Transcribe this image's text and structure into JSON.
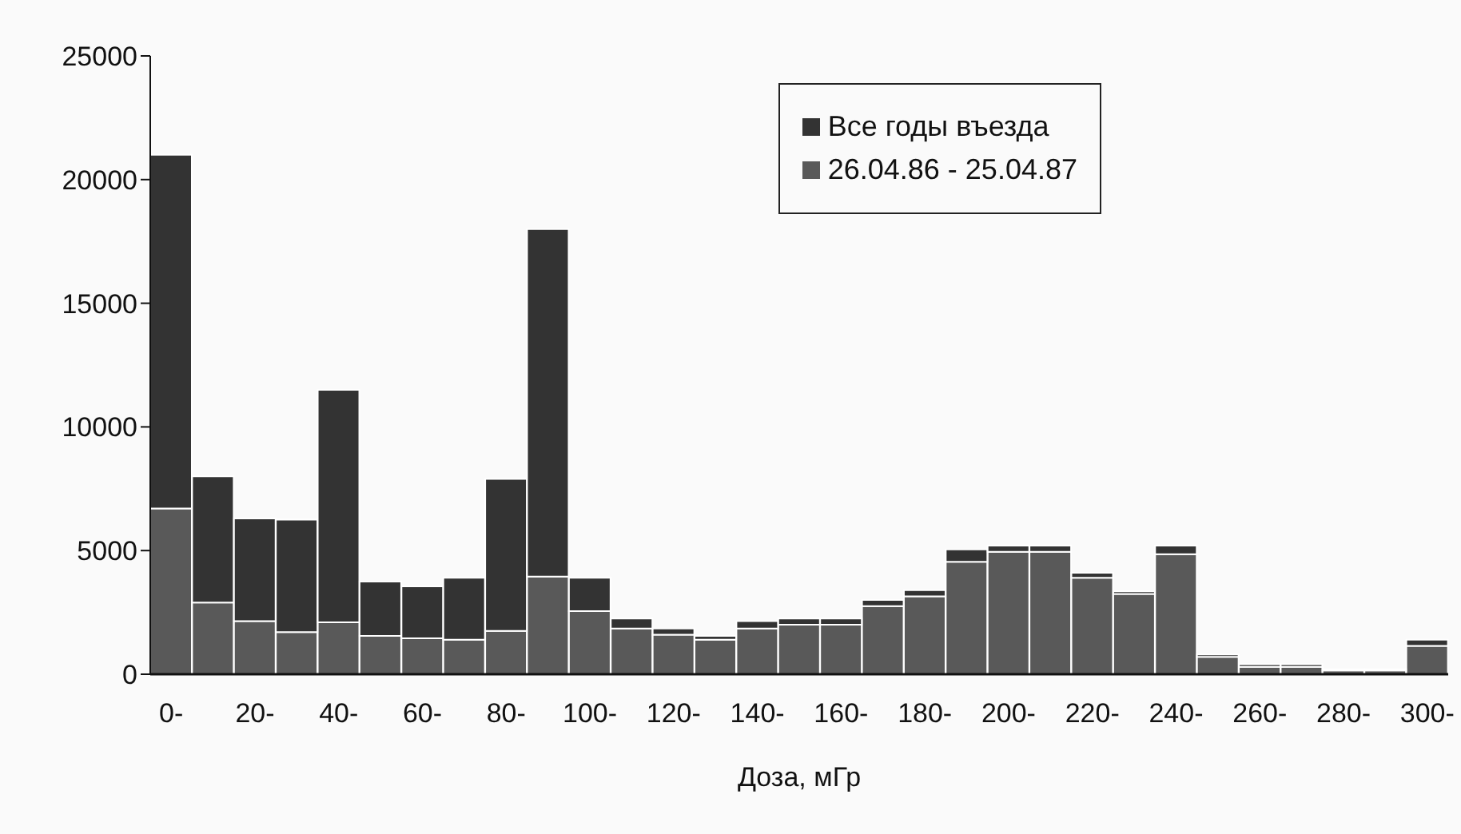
{
  "chart_data": {
    "type": "bar",
    "xlabel": "Доза, мГр",
    "stacked": true,
    "categories": [
      "0-",
      null,
      "20-",
      null,
      "40-",
      null,
      "60-",
      null,
      "80-",
      null,
      "100-",
      null,
      "120-",
      null,
      "140-",
      null,
      "160-",
      null,
      "180-",
      null,
      "200-",
      null,
      "220-",
      null,
      "240-",
      null,
      "260-",
      null,
      "280-",
      null,
      "300-"
    ],
    "series": [
      {
        "name": "26.04.86 - 25.04.87",
        "color": "#595959",
        "values": [
          6700,
          2900,
          2150,
          1700,
          2100,
          1550,
          1450,
          1400,
          1750,
          3950,
          2550,
          1850,
          1600,
          1400,
          1850,
          2000,
          2000,
          2750,
          3150,
          4550,
          4950,
          4950,
          3900,
          3250,
          4850,
          700,
          300,
          300,
          150,
          150,
          1150
        ]
      },
      {
        "name": "Все годы въезда",
        "color": "#333333",
        "values": [
          14300,
          5100,
          4150,
          4550,
          9400,
          2200,
          2100,
          2500,
          6150,
          14050,
          1350,
          400,
          250,
          150,
          300,
          250,
          250,
          250,
          250,
          500,
          250,
          250,
          200,
          100,
          350,
          100,
          100,
          100,
          50,
          50,
          250
        ]
      }
    ],
    "ylim": [
      0,
      25000
    ],
    "yticks": [
      0,
      5000,
      10000,
      15000,
      20000,
      25000
    ],
    "legend": "top right"
  }
}
